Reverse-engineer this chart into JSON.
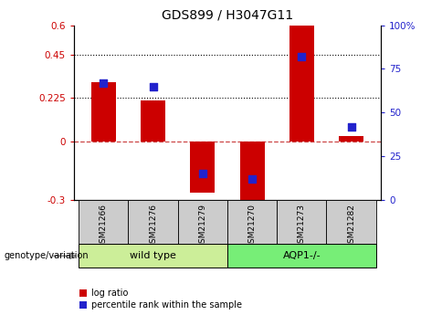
{
  "title": "GDS899 / H3047G11",
  "samples": [
    "GSM21266",
    "GSM21276",
    "GSM21279",
    "GSM21270",
    "GSM21273",
    "GSM21282"
  ],
  "log_ratio": [
    0.305,
    0.215,
    -0.26,
    -0.31,
    0.6,
    0.03
  ],
  "percentile_rank": [
    67,
    65,
    15,
    12,
    82,
    42
  ],
  "ylim_left": [
    -0.3,
    0.6
  ],
  "ylim_right": [
    0,
    100
  ],
  "yticks_left": [
    -0.3,
    0,
    0.225,
    0.45,
    0.6
  ],
  "yticks_right": [
    0,
    25,
    50,
    75,
    100
  ],
  "hlines": [
    0.225,
    0.45
  ],
  "bar_color": "#cc0000",
  "dot_color": "#2222cc",
  "zero_line_color": "#cc4444",
  "wild_type_label": "wild type",
  "aqp1_label": "AQP1-/-",
  "genotype_label": "genotype/variation",
  "legend_log_ratio": "log ratio",
  "legend_percentile": "percentile rank within the sample",
  "group_box_color_wt": "#ccee99",
  "group_box_color_aqp": "#77ee77",
  "tick_label_area_color": "#cccccc",
  "bar_width": 0.5,
  "n_wt": 3,
  "n_aqp": 3
}
